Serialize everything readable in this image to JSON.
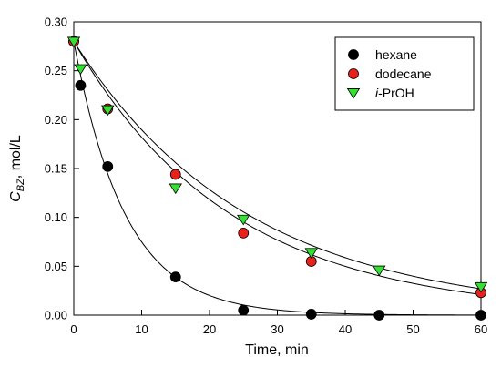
{
  "chart_data": {
    "type": "scatter",
    "xlabel": "Time, min",
    "ylabel": "C",
    "ylabel_sub": "BZ",
    "ylabel_suffix": ", mol/L",
    "xlim": [
      0,
      60
    ],
    "ylim": [
      0,
      0.3
    ],
    "xticks": [
      0,
      10,
      20,
      30,
      40,
      50,
      60
    ],
    "yticks": [
      0.0,
      0.05,
      0.1,
      0.15,
      0.2,
      0.25,
      0.3
    ],
    "xtick_labels": [
      "0",
      "10",
      "20",
      "30",
      "40",
      "50",
      "60"
    ],
    "ytick_labels": [
      "0.00",
      "0.05",
      "0.10",
      "0.15",
      "0.20",
      "0.25",
      "0.30"
    ],
    "grid": false,
    "legend_position": "top-right",
    "fit_curves": true,
    "series": [
      {
        "name": "hexane",
        "name_parts": [
          {
            "text": "hexane",
            "italic": false
          }
        ],
        "marker": "circle",
        "color": "#000000",
        "x": [
          0,
          1,
          5,
          15,
          25,
          35,
          45,
          60
        ],
        "y": [
          0.28,
          0.235,
          0.152,
          0.039,
          0.005,
          0.001,
          0.0,
          0.0
        ],
        "fit": {
          "model": "exponential",
          "c0": 0.28,
          "k": 0.1318
        }
      },
      {
        "name": "dodecane",
        "name_parts": [
          {
            "text": "dodecane",
            "italic": false
          }
        ],
        "marker": "circle",
        "color": "#e8211b",
        "x": [
          0,
          5,
          15,
          25,
          35,
          60
        ],
        "y": [
          0.28,
          0.211,
          0.144,
          0.084,
          0.055,
          0.023
        ],
        "fit": {
          "model": "exponential",
          "c0": 0.28,
          "k": 0.0431
        }
      },
      {
        "name": "i-PrOH",
        "name_parts": [
          {
            "text": "i",
            "italic": true
          },
          {
            "text": "-PrOH",
            "italic": false
          }
        ],
        "marker": "triangle-down",
        "color": "#33e033",
        "x": [
          0,
          1,
          5,
          15,
          25,
          35,
          45,
          60
        ],
        "y": [
          0.28,
          0.252,
          0.21,
          0.13,
          0.098,
          0.064,
          0.046,
          0.029
        ],
        "fit": {
          "model": "exponential",
          "c0": 0.28,
          "k": 0.039
        }
      }
    ]
  }
}
